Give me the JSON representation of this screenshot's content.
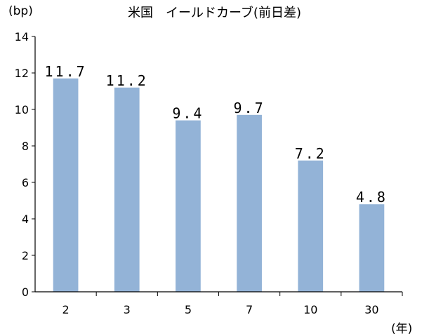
{
  "chart_data": {
    "type": "bar",
    "title": "米国　イールドカーブ(前日差)",
    "y_unit": "(bp)",
    "x_unit": "(年)",
    "categories": [
      "2",
      "3",
      "5",
      "7",
      "10",
      "30"
    ],
    "values": [
      11.7,
      11.2,
      9.4,
      9.7,
      7.2,
      4.8
    ],
    "value_labels": [
      "11.7",
      "11.2",
      "9.4",
      "9.7",
      "7.2",
      "4.8"
    ],
    "ylim": [
      0,
      14
    ],
    "y_ticks": [
      "0",
      "2",
      "4",
      "6",
      "8",
      "10",
      "12",
      "14"
    ],
    "grid": false,
    "bar_color": "#93b3d7"
  }
}
